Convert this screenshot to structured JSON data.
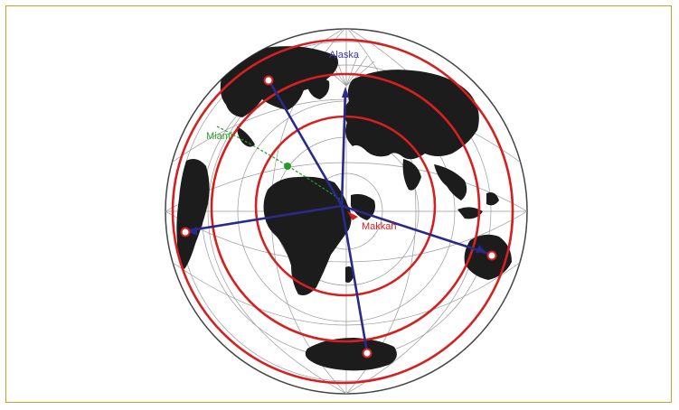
{
  "map": {
    "labels": {
      "alaska": "Alaska",
      "miami": "Miami",
      "makkah": "Makkah"
    },
    "colors": {
      "frame": "#c9a227",
      "circles": "#d42020",
      "rays": "#2a2a8a",
      "land": "#1c1c1c",
      "graticule": "#9a9a9a",
      "alaska_label": "#3a3aa8",
      "miami_label": "#2a9a2a",
      "makkah_label": "#d42020"
    },
    "rings": 3,
    "destinations": [
      "north-america",
      "south-america",
      "australia",
      "antarctica"
    ]
  }
}
